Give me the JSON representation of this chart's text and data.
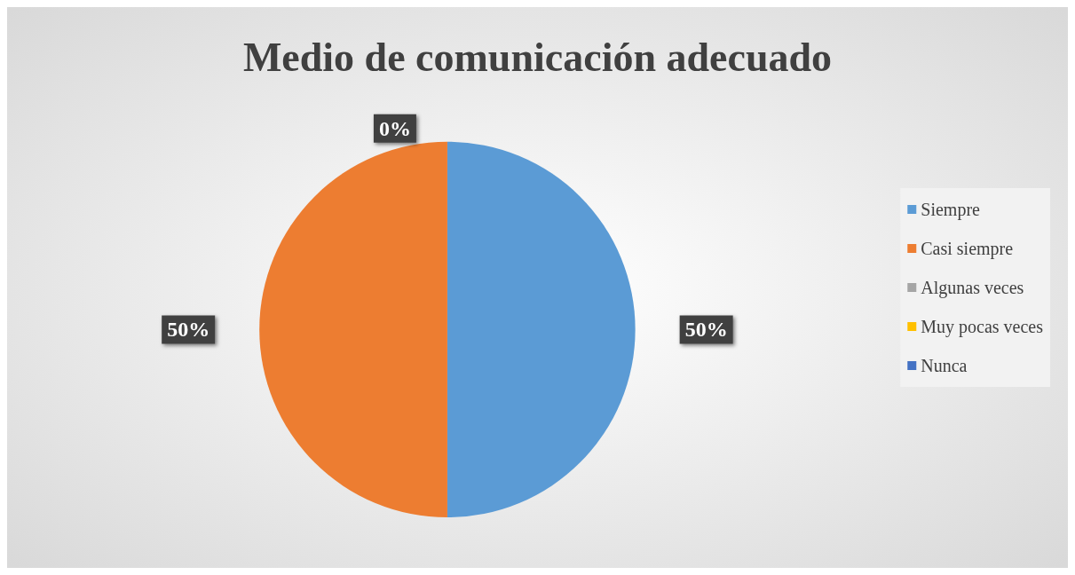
{
  "chart_data": {
    "type": "pie",
    "title": "Medio de comunicación adecuado",
    "categories": [
      "Siempre",
      "Casi siempre",
      "Algunas veces",
      "Muy pocas veces",
      "Nunca"
    ],
    "values": [
      50,
      50,
      0,
      0,
      0
    ],
    "colors": [
      "#5b9bd5",
      "#ed7d31",
      "#a5a5a5",
      "#ffc000",
      "#4472c4"
    ],
    "value_labels": [
      "50%",
      "50%",
      "0%",
      null,
      null
    ],
    "legend": "right"
  }
}
